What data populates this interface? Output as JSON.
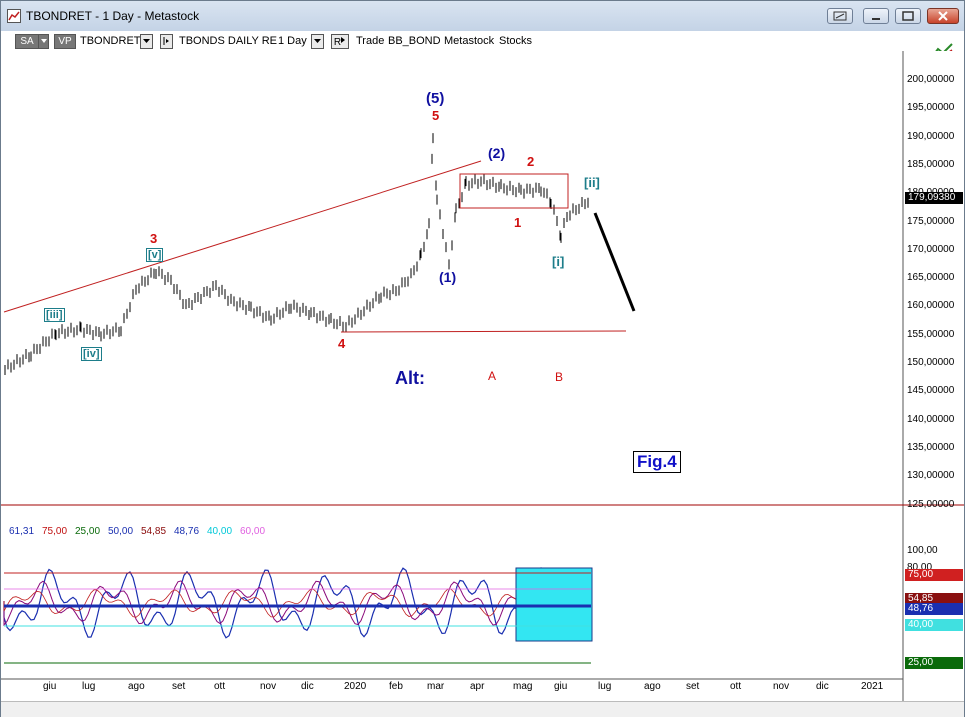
{
  "window": {
    "title": "TBONDRET - 1 Day - Metastock"
  },
  "toolbar": {
    "sa": "SA",
    "vp": "VP",
    "symbol": "TBONDRET",
    "description": "TBONDS DAILY RE",
    "period": "1 Day",
    "r": "R",
    "trade": "Trade",
    "bb": "BB_BOND",
    "source": "Metastock",
    "stocks": "Stocks"
  },
  "price_axis": {
    "labels": [
      "200,00000",
      "195,00000",
      "190,00000",
      "185,00000",
      "180,00000",
      "175,00000",
      "170,00000",
      "165,00000",
      "160,00000",
      "155,00000",
      "150,00000",
      "145,00000",
      "140,00000",
      "135,00000",
      "130,00000",
      "125,00000"
    ],
    "current": "179,09380"
  },
  "indicator": {
    "values": [
      "61,31",
      "75,00",
      "25,00",
      "50,00",
      "54,85",
      "48,76",
      "40,00",
      "60,00"
    ],
    "colors": [
      "#1a2fb0",
      "#c01010",
      "#0a6a0a",
      "#1a2fb0",
      "#8a0a0a",
      "#1a2fb0",
      "#00c8d8",
      "#e060e0"
    ],
    "axis_labels": [
      "100,00",
      "80,00"
    ],
    "boxes": [
      "75,00",
      "54,85",
      "48,76",
      "40,00",
      "25,00"
    ],
    "box_colors": [
      "#d02020",
      "#8a1010",
      "#1a2fb0",
      "#40e0e0",
      "#0a6a0a"
    ]
  },
  "x_axis": [
    "giu",
    "lug",
    "ago",
    "set",
    "ott",
    "nov",
    "dic",
    "2020",
    "feb",
    "mar",
    "apr",
    "mag",
    "giu",
    "lug",
    "ago",
    "set",
    "ott",
    "nov",
    "dic",
    "2021"
  ],
  "annotations": {
    "wave5_blue": "(5)",
    "wave5_red": "5",
    "wave2_blue": "(2)",
    "wave2_red": "2",
    "wave1_blue": "(1)",
    "wave1_red": "1",
    "wave3_red": "3",
    "wave4_red": "4",
    "v": "[v]",
    "iii": "[iii]",
    "iv": "[iv]",
    "i": "[i]",
    "ii": "[ii]",
    "alt": "Alt:",
    "a": "A",
    "b": "B",
    "fig": "Fig.4"
  }
}
